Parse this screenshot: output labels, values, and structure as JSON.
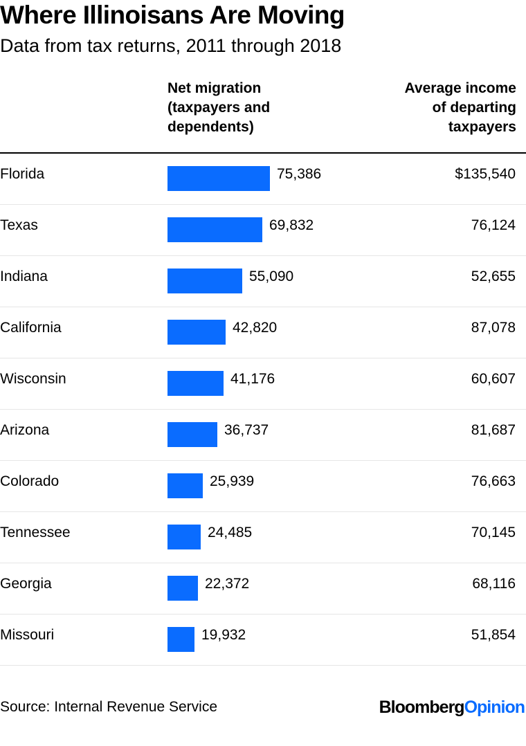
{
  "title": "Where Illinoisans Are Moving",
  "subtitle": "Data from tax returns, 2011 through 2018",
  "columns": {
    "migration": [
      "Net migration",
      "(taxpayers and",
      "dependents)"
    ],
    "income": [
      "Average income",
      "of departing",
      "taxpayers"
    ]
  },
  "source": "Source: Internal Revenue Service",
  "logo": {
    "brand": "Bloomberg",
    "section": "Opinion"
  },
  "colors": {
    "bar": "#0a6cff",
    "rule": "#000000",
    "row_divider": "#e6e6e6"
  },
  "chart_data": {
    "type": "bar",
    "orientation": "horizontal",
    "title": "Where Illinoisans Are Moving",
    "subtitle": "Data from tax returns, 2011 through 2018",
    "categories": [
      "Florida",
      "Texas",
      "Indiana",
      "California",
      "Wisconsin",
      "Arizona",
      "Colorado",
      "Tennessee",
      "Georgia",
      "Missouri"
    ],
    "series": [
      {
        "name": "Net migration (taxpayers and dependents)",
        "values": [
          75386,
          69832,
          55090,
          42820,
          41176,
          36737,
          25939,
          24485,
          22372,
          19932
        ],
        "labels": [
          "75,386",
          "69,832",
          "55,090",
          "42,820",
          "41,176",
          "36,737",
          "25,939",
          "24,485",
          "22,372",
          "19,932"
        ]
      },
      {
        "name": "Average income of departing taxpayers",
        "values": [
          135540,
          76124,
          52655,
          87078,
          60607,
          81687,
          76663,
          70145,
          68116,
          51854
        ],
        "labels": [
          "$135,540",
          "76,124",
          "52,655",
          "87,078",
          "60,607",
          "81,687",
          "76,663",
          "70,145",
          "68,116",
          "51,854"
        ]
      }
    ],
    "grid": false,
    "legend": "none"
  }
}
